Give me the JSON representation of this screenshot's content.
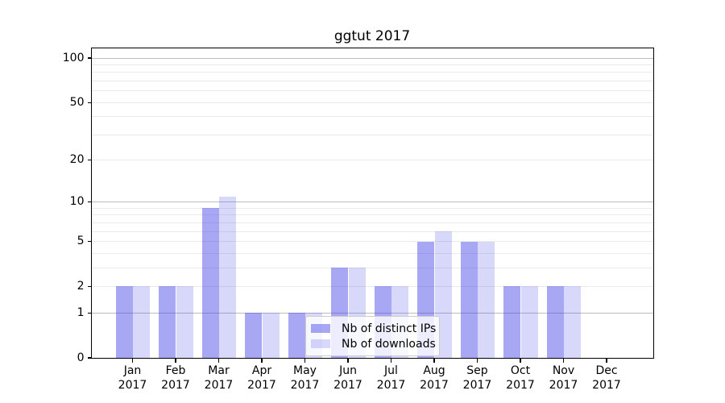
{
  "chart_data": {
    "type": "bar",
    "title": "ggtut 2017",
    "categories": [
      "Jan",
      "Feb",
      "Mar",
      "Apr",
      "May",
      "Jun",
      "Jul",
      "Aug",
      "Sep",
      "Oct",
      "Nov",
      "Dec"
    ],
    "x_year_label": "2017",
    "series": [
      {
        "name": "Nb of distinct IPs",
        "color": "rgba(60,60,230,0.45)",
        "values": [
          2,
          2,
          9,
          1,
          1,
          3,
          2,
          5,
          5,
          2,
          2,
          0
        ]
      },
      {
        "name": "Nb of downloads",
        "color": "rgba(60,60,230,0.20)",
        "values": [
          2,
          2,
          11,
          1,
          1,
          3,
          2,
          6,
          5,
          2,
          2,
          0
        ]
      }
    ],
    "xlabel": "",
    "ylabel": "",
    "yaxis": {
      "scale": "log1p",
      "tick_values": [
        0,
        1,
        2,
        5,
        10,
        20,
        50,
        100
      ],
      "tick_labels": [
        "0",
        "1",
        "2",
        "5",
        "10",
        "20",
        "50",
        "100"
      ],
      "major_gridlines": [
        1,
        10,
        100
      ],
      "minor_gridlines": [
        2,
        3,
        4,
        5,
        6,
        7,
        8,
        9,
        20,
        30,
        40,
        50,
        60,
        70,
        80,
        90
      ],
      "ylim": [
        0,
        116.3
      ]
    },
    "legend": {
      "position": "lower-center"
    },
    "colors": {
      "major_grid": "#bdbdbd",
      "minor_grid": "#eaeaea",
      "spine": "#000000",
      "legend_border": "#cccccc",
      "legend_background": "rgba(255,255,255,0.8)"
    }
  }
}
